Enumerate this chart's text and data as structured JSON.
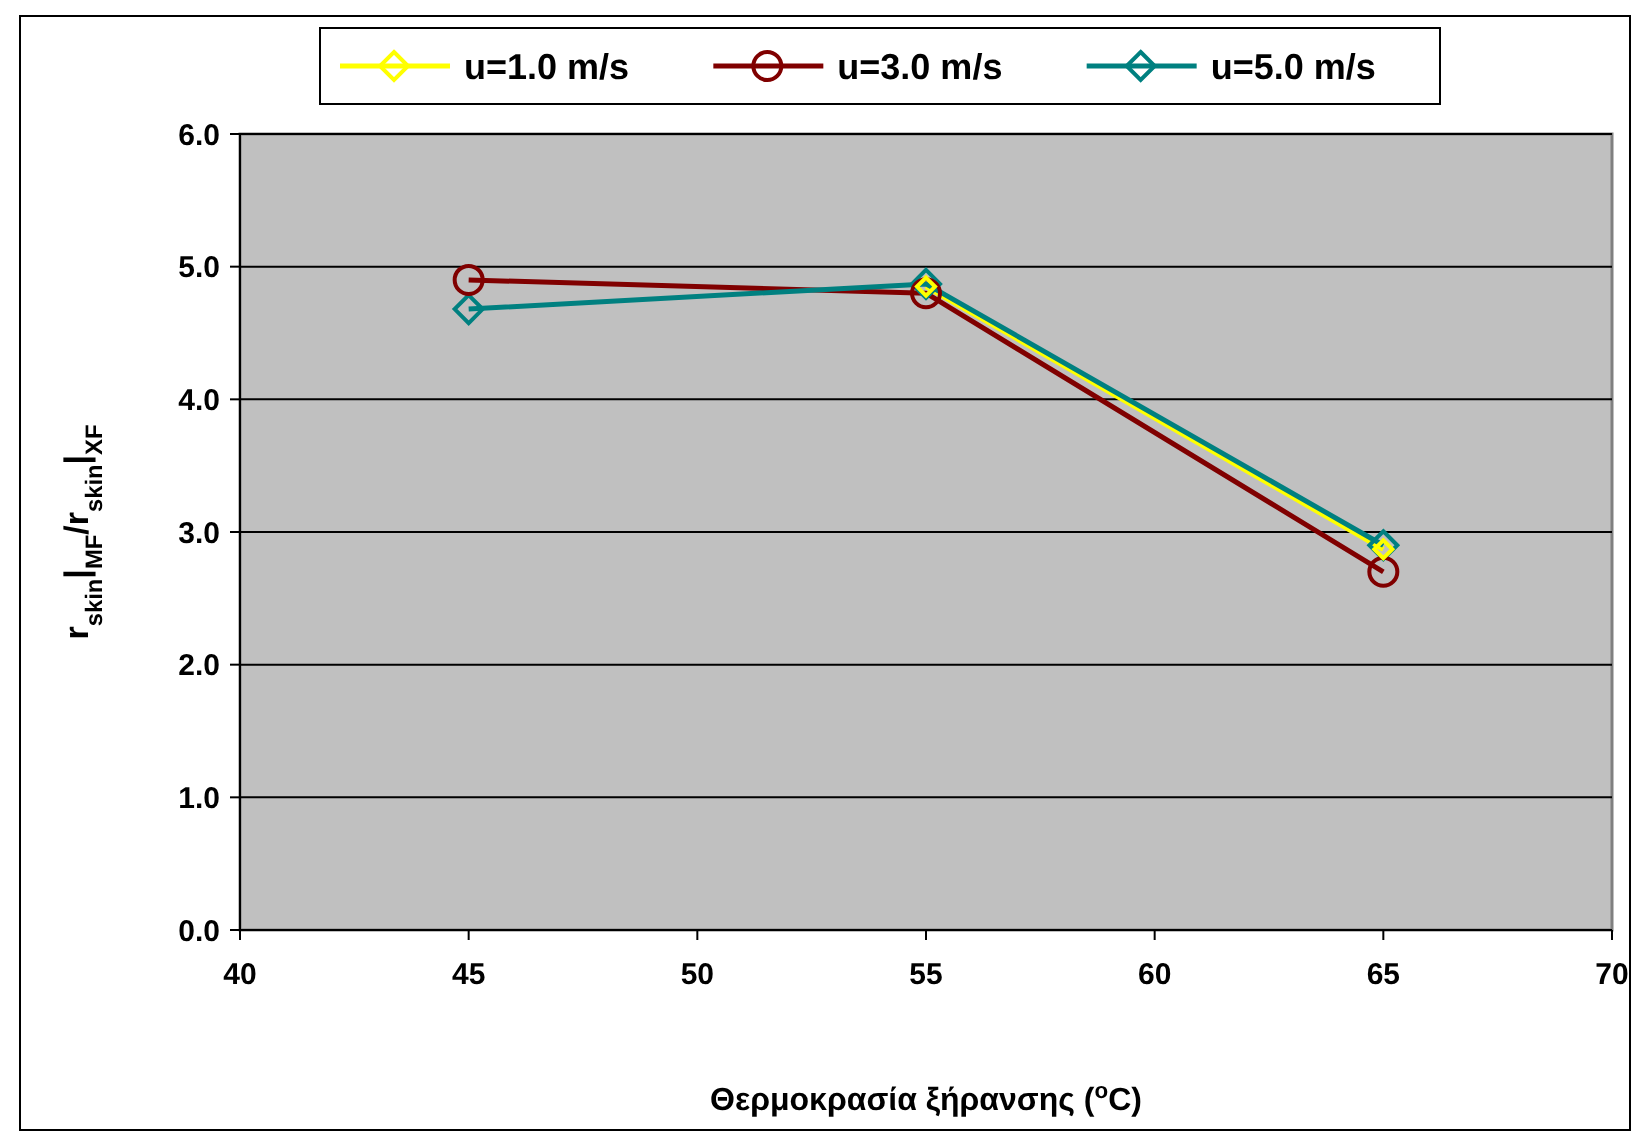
{
  "chart_data": {
    "type": "line",
    "xlabel": "Θερμοκρασία ξήρανσης ($^{o}$C)",
    "ylabel": "r$_{skin}$|$_{MF}$/r$_{skin}$|$_{XF}$",
    "x": [
      45,
      55,
      65
    ],
    "series": [
      {
        "name": "u=1.0 m/s",
        "color": "#ffff00",
        "values": [
          null,
          4.85,
          2.87
        ],
        "marker": "diamond"
      },
      {
        "name": "u=3.0 m/s",
        "color": "#800000",
        "values": [
          4.9,
          4.8,
          2.7
        ],
        "marker": "circle"
      },
      {
        "name": "u=5.0 m/s",
        "color": "#008080",
        "values": [
          4.68,
          4.87,
          2.9
        ],
        "marker": "diamond"
      }
    ],
    "xlim": [
      40,
      70
    ],
    "xticks": [
      40,
      45,
      50,
      55,
      60,
      65,
      70
    ],
    "ylim": [
      0,
      6
    ],
    "yticks": [
      {
        "value": 0,
        "label": "0.0"
      },
      {
        "value": 1,
        "label": "1.0"
      },
      {
        "value": 2,
        "label": "2.0"
      },
      {
        "value": 3,
        "label": "3.0"
      },
      {
        "value": 4,
        "label": "4.0"
      },
      {
        "value": 5,
        "label": "5.0"
      },
      {
        "value": 6,
        "label": "6.0"
      }
    ],
    "grid": "y",
    "legend": "top",
    "line_style": "solid"
  }
}
